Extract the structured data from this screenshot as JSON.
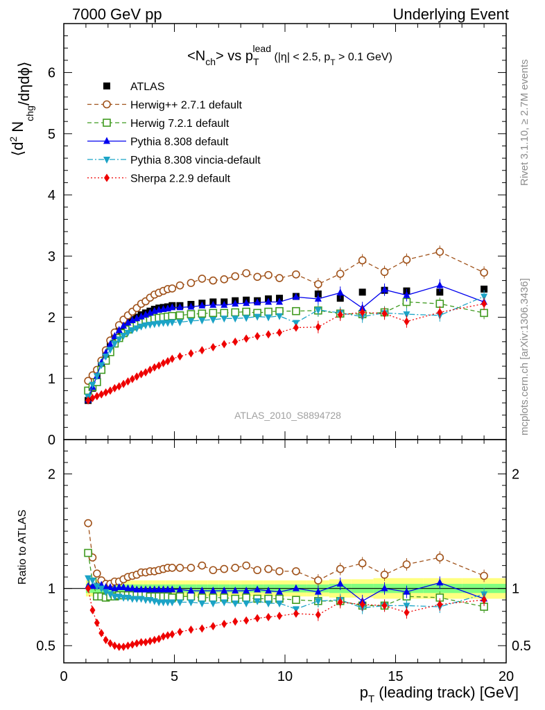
{
  "header": {
    "left": "7000 GeV pp",
    "right": "Underlying Event"
  },
  "side_labels": {
    "rivet": "Rivet 3.1.10, ≥ 2.7M events",
    "mcplots": "mcplots.cern.ch [arXiv:1306.3436]"
  },
  "chart_data": [
    {
      "type": "line",
      "title": {
        "text_1": "<N",
        "sub_1": "ch",
        "text_2": "> vs p",
        "sub_2": "T",
        "sup_2": "lead",
        "cut_1": " (|η| < 2.5, p",
        "cut_sub": "T",
        "cut_2": " > 0.1 GeV)"
      },
      "ylabel": "⟨d² Nₕₚ/dηdϕ⟩",
      "ylabel_parts": {
        "a": "⟨d",
        "sup": "2",
        "b": " N",
        "sub": "chg",
        "c": "/dηdϕ⟩"
      },
      "analysis_id": "ATLAS_2010_S8894728",
      "xlim": [
        0,
        20
      ],
      "ylim": [
        0,
        6.8
      ],
      "x_ticks": [
        0,
        5,
        10,
        15,
        20
      ],
      "y_ticks": [
        0,
        1,
        2,
        3,
        4,
        5,
        6
      ],
      "y_tick_labels": [
        "0",
        "1",
        "2",
        "3",
        "4",
        "5",
        "6"
      ],
      "legend_position": "top-left",
      "x": [
        1.1,
        1.3,
        1.5,
        1.7,
        1.9,
        2.1,
        2.3,
        2.5,
        2.7,
        2.9,
        3.1,
        3.3,
        3.5,
        3.7,
        3.9,
        4.1,
        4.3,
        4.5,
        4.7,
        4.9,
        5.25,
        5.75,
        6.25,
        6.75,
        7.25,
        7.75,
        8.25,
        8.75,
        9.25,
        9.75,
        10.5,
        11.5,
        12.5,
        13.5,
        14.5,
        15.5,
        17,
        19
      ],
      "series": [
        {
          "name": "ATLAS",
          "color": "#000000",
          "marker": "square-filled",
          "line": "none",
          "values": [
            0.64,
            0.84,
            1.02,
            1.22,
            1.4,
            1.54,
            1.68,
            1.77,
            1.85,
            1.91,
            1.96,
            2.0,
            2.04,
            2.07,
            2.1,
            2.13,
            2.15,
            2.16,
            2.17,
            2.19,
            2.19,
            2.21,
            2.23,
            2.25,
            2.25,
            2.27,
            2.28,
            2.27,
            2.3,
            2.31,
            2.34,
            2.38,
            2.31,
            2.41,
            2.44,
            2.43,
            2.41,
            2.46
          ]
        },
        {
          "name": "Herwig++ 2.7.1 default",
          "color": "#a0521a",
          "marker": "circle-open",
          "line": "dashed",
          "values": [
            0.96,
            1.05,
            1.14,
            1.29,
            1.46,
            1.62,
            1.75,
            1.87,
            1.96,
            2.03,
            2.09,
            2.15,
            2.22,
            2.26,
            2.32,
            2.37,
            2.4,
            2.43,
            2.46,
            2.47,
            2.52,
            2.56,
            2.63,
            2.6,
            2.62,
            2.67,
            2.72,
            2.66,
            2.69,
            2.64,
            2.7,
            2.54,
            2.71,
            2.93,
            2.74,
            2.94,
            3.07,
            2.73
          ]
        },
        {
          "name": "Herwig 7.2.1 default",
          "color": "#3f9a1f",
          "marker": "square-open",
          "line": "dashed",
          "values": [
            0.8,
            0.86,
            0.94,
            1.14,
            1.29,
            1.43,
            1.57,
            1.66,
            1.74,
            1.8,
            1.85,
            1.88,
            1.91,
            1.94,
            1.96,
            1.98,
            1.99,
            2.0,
            2.01,
            2.02,
            2.03,
            2.05,
            2.06,
            2.07,
            2.07,
            2.08,
            2.09,
            2.07,
            2.09,
            2.1,
            2.1,
            2.11,
            2.06,
            2.05,
            2.08,
            2.25,
            2.22,
            2.07
          ]
        },
        {
          "name": "Pythia 8.308 default",
          "color": "#0000ee",
          "marker": "triangle-up",
          "line": "solid",
          "values": [
            0.65,
            0.86,
            1.04,
            1.26,
            1.42,
            1.56,
            1.69,
            1.79,
            1.86,
            1.91,
            1.95,
            1.98,
            2.01,
            2.04,
            2.07,
            2.1,
            2.12,
            2.13,
            2.14,
            2.16,
            2.16,
            2.17,
            2.19,
            2.2,
            2.2,
            2.22,
            2.23,
            2.24,
            2.25,
            2.25,
            2.33,
            2.3,
            2.4,
            2.15,
            2.45,
            2.36,
            2.52,
            2.25
          ]
        },
        {
          "name": "Pythia 8.308 vincia-default",
          "color": "#1ba3c6",
          "marker": "triangle-down",
          "line": "dashdot",
          "values": [
            0.7,
            0.9,
            1.04,
            1.22,
            1.36,
            1.47,
            1.57,
            1.64,
            1.7,
            1.75,
            1.79,
            1.82,
            1.85,
            1.87,
            1.88,
            1.89,
            1.9,
            1.91,
            1.91,
            1.92,
            1.92,
            1.94,
            1.95,
            1.96,
            1.98,
            1.98,
            1.99,
            2.01,
            2.0,
            2.02,
            1.91,
            2.12,
            2.07,
            2.01,
            2.07,
            2.05,
            2.03,
            2.34
          ]
        },
        {
          "name": "Sherpa 2.2.9 default",
          "color": "#ee0000",
          "marker": "diamond",
          "line": "dotted",
          "values": [
            0.64,
            0.68,
            0.71,
            0.74,
            0.77,
            0.8,
            0.84,
            0.87,
            0.91,
            0.95,
            0.99,
            1.03,
            1.07,
            1.1,
            1.14,
            1.18,
            1.21,
            1.25,
            1.28,
            1.32,
            1.36,
            1.41,
            1.46,
            1.51,
            1.56,
            1.6,
            1.65,
            1.69,
            1.72,
            1.75,
            1.83,
            1.84,
            2.04,
            2.08,
            2.06,
            1.93,
            2.08,
            2.22
          ]
        }
      ]
    },
    {
      "type": "line",
      "ylabel": "Ratio to ATLAS",
      "xlabel": "p",
      "xlabel_sub": "T",
      "xlabel_rest": " (leading track) [GeV]",
      "xlim": [
        0,
        20
      ],
      "ylim": [
        0.35,
        2.3
      ],
      "y_ticks": [
        0.5,
        1,
        2
      ],
      "y_tick_labels": [
        "0.5",
        "1",
        "2"
      ],
      "x_ticks": [
        0,
        5,
        10,
        15,
        20
      ],
      "x_tick_labels": [
        "0",
        "5",
        "10",
        "15",
        "20"
      ],
      "uncertainty_bands": {
        "yellow_halfwidth": [
          0.07,
          0.07,
          0.07,
          0.07,
          0.07,
          0.07,
          0.07,
          0.07,
          0.07,
          0.07,
          0.07,
          0.07,
          0.07,
          0.07,
          0.07,
          0.07,
          0.07,
          0.07,
          0.07,
          0.07,
          0.07,
          0.07,
          0.07,
          0.07,
          0.07,
          0.07,
          0.07,
          0.07,
          0.07,
          0.07,
          0.07,
          0.07,
          0.08,
          0.08,
          0.09,
          0.09,
          0.09,
          0.09
        ],
        "green_halfwidth": [
          0.04,
          0.04,
          0.035,
          0.035,
          0.035,
          0.035,
          0.035,
          0.035,
          0.035,
          0.035,
          0.035,
          0.035,
          0.035,
          0.035,
          0.035,
          0.035,
          0.035,
          0.035,
          0.035,
          0.035,
          0.035,
          0.035,
          0.035,
          0.035,
          0.035,
          0.035,
          0.035,
          0.035,
          0.035,
          0.035,
          0.035,
          0.035,
          0.04,
          0.04,
          0.04,
          0.04,
          0.04,
          0.04
        ],
        "yellow_color": "#ffff80",
        "green_color": "#80ff80"
      },
      "series": [
        {
          "name": "Herwig++ 2.7.1 default",
          "values": [
            1.57,
            1.27,
            1.13,
            1.07,
            1.04,
            1.04,
            1.06,
            1.06,
            1.08,
            1.1,
            1.11,
            1.12,
            1.14,
            1.14,
            1.15,
            1.15,
            1.16,
            1.17,
            1.18,
            1.18,
            1.18,
            1.18,
            1.2,
            1.16,
            1.17,
            1.18,
            1.2,
            1.16,
            1.17,
            1.15,
            1.15,
            1.07,
            1.17,
            1.22,
            1.12,
            1.21,
            1.27,
            1.11
          ]
        },
        {
          "name": "Herwig 7.2.1 default",
          "values": [
            1.31,
            1.06,
            0.93,
            0.93,
            0.92,
            0.93,
            0.93,
            0.94,
            0.94,
            0.94,
            0.94,
            0.94,
            0.94,
            0.94,
            0.93,
            0.93,
            0.93,
            0.93,
            0.93,
            0.92,
            0.93,
            0.93,
            0.92,
            0.92,
            0.92,
            0.91,
            0.92,
            0.91,
            0.91,
            0.91,
            0.9,
            0.89,
            0.89,
            0.85,
            0.85,
            0.93,
            0.92,
            0.84
          ]
        },
        {
          "name": "Pythia 8.308 default",
          "values": [
            1.02,
            1.02,
            1.02,
            1.03,
            1.01,
            1.01,
            1.0,
            1.01,
            1.01,
            1.0,
            1.0,
            0.99,
            0.99,
            0.99,
            0.99,
            0.99,
            0.99,
            0.99,
            0.99,
            0.99,
            0.99,
            0.98,
            0.98,
            0.98,
            0.98,
            0.98,
            0.98,
            0.99,
            0.98,
            0.97,
            1.0,
            0.97,
            1.04,
            0.89,
            1.0,
            0.97,
            1.05,
            0.91
          ]
        },
        {
          "name": "Pythia 8.308 vincia-default",
          "values": [
            1.09,
            1.07,
            1.02,
            1.0,
            0.97,
            0.95,
            0.93,
            0.93,
            0.92,
            0.92,
            0.91,
            0.91,
            0.91,
            0.9,
            0.9,
            0.89,
            0.88,
            0.88,
            0.88,
            0.88,
            0.88,
            0.88,
            0.87,
            0.87,
            0.88,
            0.87,
            0.87,
            0.89,
            0.87,
            0.87,
            0.82,
            0.89,
            0.9,
            0.83,
            0.85,
            0.85,
            0.84,
            0.95
          ]
        },
        {
          "name": "Sherpa 2.2.9 default",
          "values": [
            1.0,
            0.81,
            0.7,
            0.61,
            0.55,
            0.52,
            0.5,
            0.49,
            0.49,
            0.5,
            0.51,
            0.52,
            0.53,
            0.53,
            0.54,
            0.55,
            0.56,
            0.58,
            0.59,
            0.6,
            0.62,
            0.64,
            0.65,
            0.67,
            0.69,
            0.71,
            0.72,
            0.74,
            0.75,
            0.76,
            0.78,
            0.77,
            0.88,
            0.86,
            0.85,
            0.79,
            0.86,
            0.9
          ]
        }
      ]
    }
  ]
}
